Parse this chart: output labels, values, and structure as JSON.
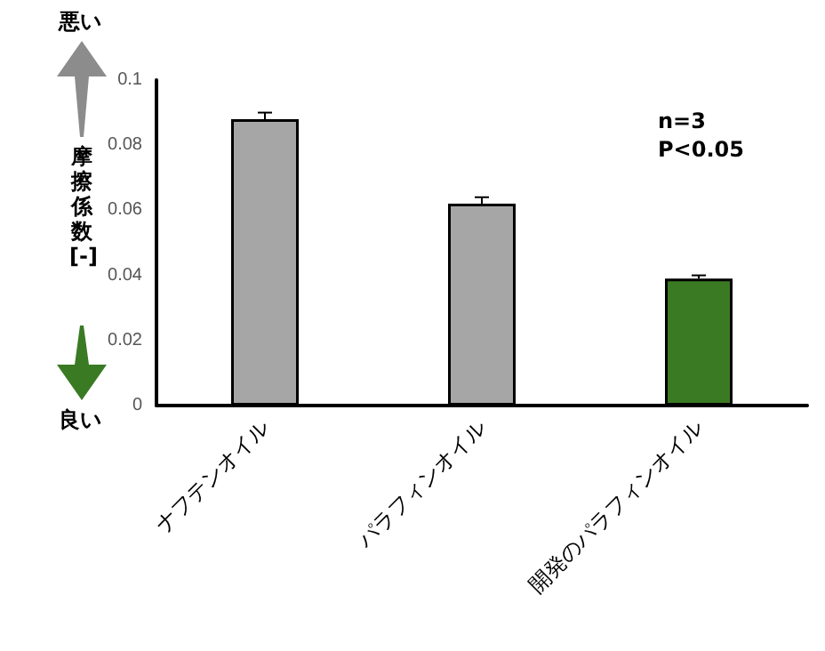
{
  "chart_data": {
    "type": "bar",
    "ylabel": "摩擦係数[-]",
    "categories": [
      "ナフテンオイル",
      "パラフィンオイル",
      "開発のパラフィンオイル"
    ],
    "values": [
      0.088,
      0.062,
      0.039
    ],
    "colors": [
      "#a6a6a6",
      "#a6a6a6",
      "#3a7a23"
    ],
    "errors": [
      0.002,
      0.002,
      0.001
    ],
    "ylim": [
      0,
      0.1
    ],
    "yticks": [
      0,
      0.02,
      0.04,
      0.06,
      0.08,
      0.1
    ],
    "grid": false,
    "annotations": [
      "悪い",
      "良い",
      "n=3",
      "P<0.05"
    ]
  }
}
